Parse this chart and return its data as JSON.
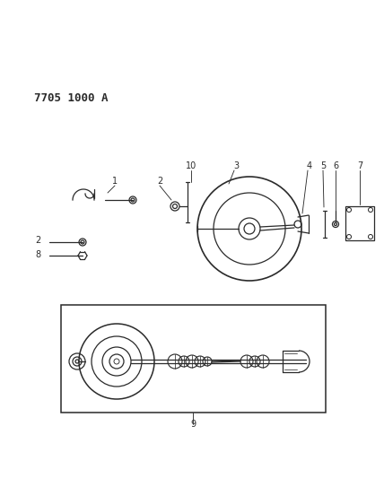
{
  "title": "7705 1000 A",
  "title_fontsize": 9,
  "title_fontweight": "bold",
  "bg_color": "#ffffff",
  "line_color": "#2a2a2a",
  "fig_width": 4.28,
  "fig_height": 5.33,
  "dpi": 100
}
